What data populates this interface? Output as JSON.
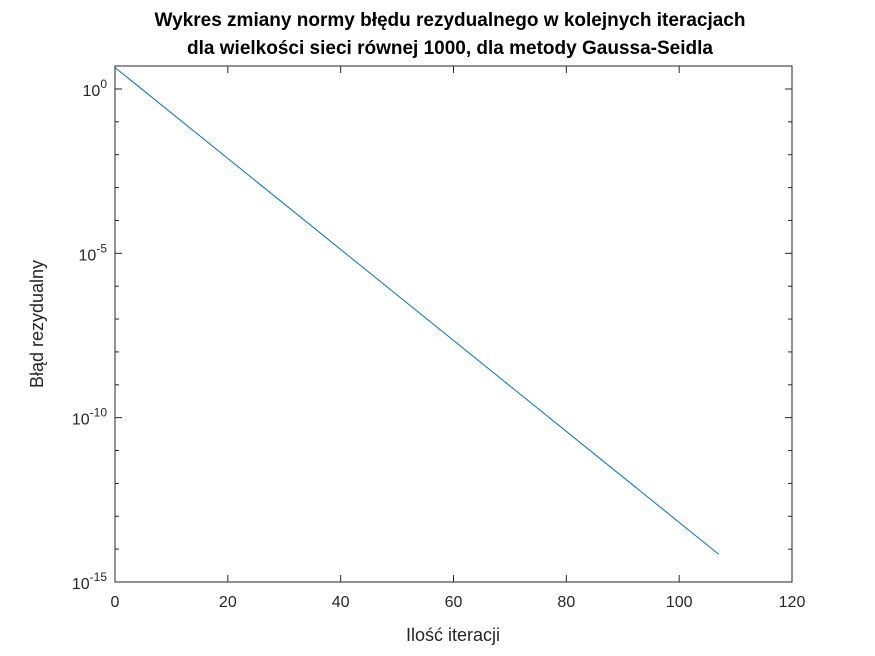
{
  "chart_data": {
    "type": "line",
    "title": [
      "Wykres zmiany normy błędu rezydualnego w kolejnych iteracjach",
      "dla wielkości sieci równej 1000, dla metody Gaussa-Seidla"
    ],
    "xlabel": "Ilość iteracji",
    "ylabel": "Błąd rezydualny",
    "xlim": [
      0,
      120
    ],
    "ylim": [
      1e-15,
      5
    ],
    "yscale": "log",
    "grid": false,
    "x_ticks": [
      "0",
      "20",
      "40",
      "60",
      "80",
      "100",
      "120"
    ],
    "y_ticks": [
      {
        "base": "10",
        "exp": "0"
      },
      {
        "base": "10",
        "exp": "-5"
      },
      {
        "base": "10",
        "exp": "-10"
      },
      {
        "base": "10",
        "exp": "-15"
      }
    ],
    "series": [
      {
        "color": "#0072bd",
        "x": [
          0,
          107
        ],
        "y": [
          4.5,
          7e-15
        ]
      }
    ]
  }
}
